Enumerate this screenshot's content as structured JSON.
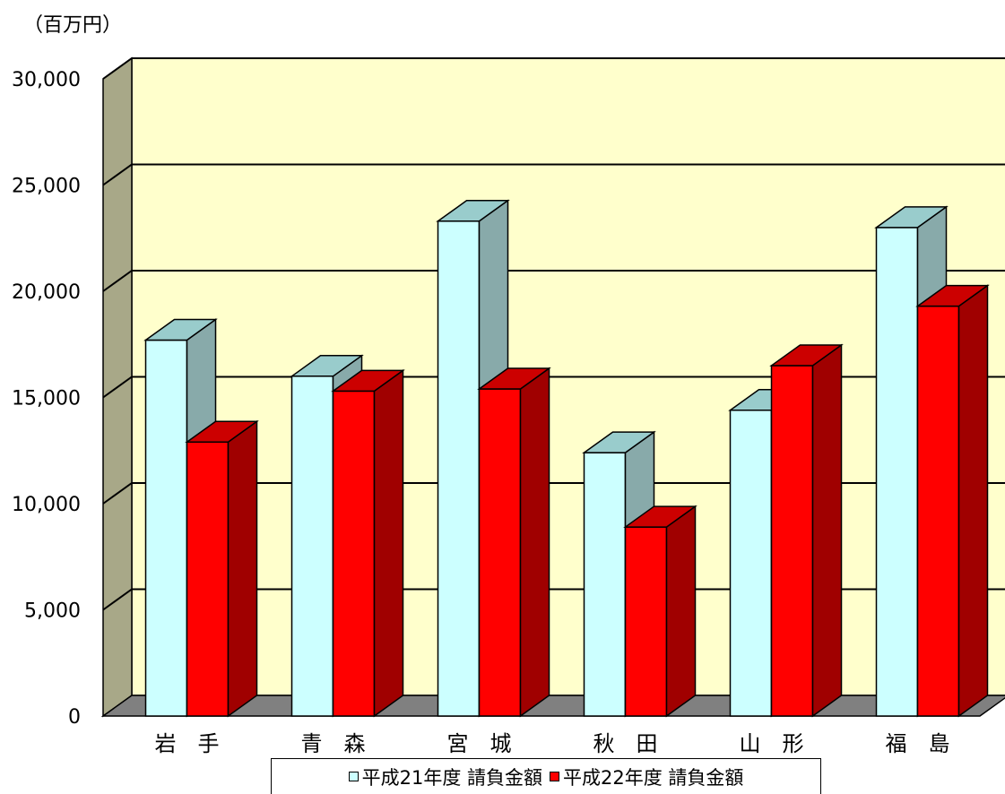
{
  "chart_data": {
    "type": "bar",
    "title": "",
    "unit_label": "（百万円）",
    "categories": [
      "岩　手",
      "青　森",
      "宮　城",
      "秋　田",
      "山　形",
      "福　島"
    ],
    "series": [
      {
        "name": "平成21年度 請負金額",
        "color": "#ccffff",
        "top_color": "#99cccc",
        "side_color": "#88aaaa",
        "values": [
          17700,
          16000,
          23300,
          12400,
          14400,
          23000
        ]
      },
      {
        "name": "平成22年度 請負金額",
        "color": "#ff0000",
        "top_color": "#cc0000",
        "side_color": "#a00000",
        "values": [
          12900,
          15300,
          15400,
          8900,
          16500,
          19300
        ]
      }
    ],
    "ylim": [
      0,
      30000
    ],
    "yticks": [
      "0",
      "5,000",
      "10,000",
      "15,000",
      "20,000",
      "25,000",
      "30,000"
    ],
    "ytick_values": [
      0,
      5000,
      10000,
      15000,
      20000,
      25000,
      30000
    ],
    "grid": true,
    "legend_position": "bottom",
    "colors": {
      "wall": "#ffffcc",
      "side_wall": "#a8a888",
      "floor": "#808080"
    }
  }
}
